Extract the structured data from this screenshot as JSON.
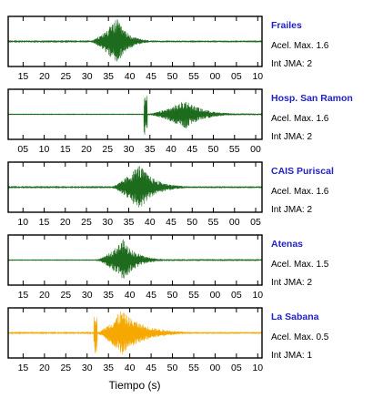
{
  "chart_data": {
    "type": "line",
    "xlabel": "Tiempo (s)",
    "colors": {
      "trace_dark": "#1d6b1d",
      "trace_last": "#f5a800",
      "station_label": "#1f1fcc",
      "frame": "#000000"
    },
    "panels": [
      {
        "station": "Frailes",
        "acel_label": "Acel. Max. 1.6",
        "int_label": "Int JMA: 2",
        "ticks": [
          "15",
          "20",
          "25",
          "30",
          "35",
          "40",
          "45",
          "50",
          "55",
          "00",
          "05",
          "10"
        ],
        "xlim": [
          11.5,
          71.0
        ],
        "color": "#1d6b1d",
        "onset": 30.5,
        "peak_time": 37.0,
        "peak_amp": 1.0,
        "pre_amp": 0.02,
        "decay": 2.5,
        "rise": 1.2
      },
      {
        "station": "Hosp. San Ramon",
        "acel_label": "Acel. Max. 1.6",
        "int_label": "Int JMA: 2",
        "ticks": [
          "05",
          "10",
          "15",
          "20",
          "25",
          "30",
          "35",
          "40",
          "45",
          "50",
          "55",
          "00"
        ],
        "xlim": [
          1.5,
          61.5
        ],
        "color": "#1d6b1d",
        "onset": 34.0,
        "peak_time": 43.5,
        "peak_amp": 0.62,
        "pre_amp": 0.01,
        "decay": 4.0,
        "rise": 3.5,
        "onset_spike": 0.95
      },
      {
        "station": "CAIS Puriscal",
        "acel_label": "Acel. Max. 1.6",
        "int_label": "Int JMA: 2",
        "ticks": [
          "10",
          "15",
          "20",
          "25",
          "30",
          "35",
          "40",
          "45",
          "50",
          "55",
          "00",
          "05"
        ],
        "xlim": [
          6.5,
          66.5
        ],
        "color": "#1d6b1d",
        "onset": 30.5,
        "peak_time": 37.5,
        "peak_amp": 1.0,
        "pre_amp": 0.02,
        "decay": 3.5,
        "rise": 3.0
      },
      {
        "station": "Atenas",
        "acel_label": "Acel. Max. 1.5",
        "int_label": "Int JMA: 2",
        "ticks": [
          "15",
          "20",
          "25",
          "30",
          "35",
          "40",
          "45",
          "50",
          "55",
          "00",
          "05",
          "10"
        ],
        "xlim": [
          11.5,
          71.0
        ],
        "color": "#1d6b1d",
        "onset": 32.0,
        "peak_time": 38.5,
        "peak_amp": 0.9,
        "pre_amp": 0.01,
        "decay": 3.0,
        "rise": 2.0
      },
      {
        "station": "La Sabana",
        "acel_label": "Acel. Max. 0.5",
        "int_label": "Int JMA: 1",
        "ticks": [
          "15",
          "20",
          "25",
          "30",
          "35",
          "40",
          "45",
          "50",
          "55",
          "00",
          "05",
          "10"
        ],
        "xlim": [
          11.5,
          71.0
        ],
        "color": "#f5a800",
        "onset": 32.0,
        "peak_time": 38.0,
        "peak_amp": 1.0,
        "pre_amp": 0.02,
        "decay": 5.0,
        "rise": 2.0,
        "onset_spike": 0.9
      }
    ]
  }
}
